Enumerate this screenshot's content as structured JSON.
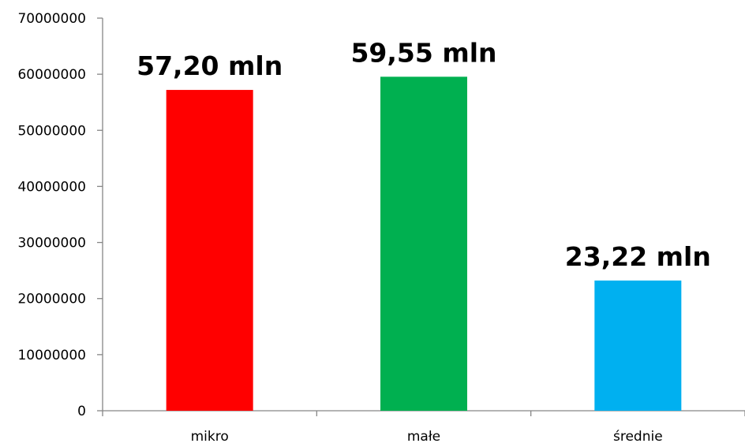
{
  "chart_data": {
    "type": "bar",
    "title": "",
    "xlabel": "",
    "ylabel": "",
    "categories": [
      "mikro",
      "małe",
      "średnie"
    ],
    "values": [
      57200000,
      59550000,
      23220000
    ],
    "data_labels": [
      "57,20 mln",
      "59,55 mln",
      "23,22 mln"
    ],
    "bar_colors": [
      "#ff0000",
      "#00b050",
      "#00b0f0"
    ],
    "ylim": [
      0,
      70000000
    ],
    "y_ticks": [
      0,
      10000000,
      20000000,
      30000000,
      40000000,
      50000000,
      60000000,
      70000000
    ],
    "y_tick_labels": [
      "0",
      "10000000",
      "20000000",
      "30000000",
      "40000000",
      "50000000",
      "60000000",
      "70000000"
    ],
    "grid": false,
    "legend": "none"
  }
}
